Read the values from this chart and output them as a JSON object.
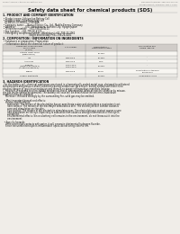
{
  "bg_color": "#f0ede8",
  "header_left": "Product Name: Lithium Ion Battery Cell",
  "header_right_line1": "Document number: SER-049-000-00",
  "header_right_line2": "Establishment / Revision: Dec.7 2010",
  "title": "Safety data sheet for chemical products (SDS)",
  "s1_title": "1. PRODUCT AND COMPANY IDENTIFICATION",
  "s1_lines": [
    " • Product name: Lithium Ion Battery Cell",
    " • Product code: Cylindrical type cell",
    "   DY-B6500, DY-B8500, DY-B500A",
    " • Company name:     Banyu Electric Co., Ltd., Mobile Energy Company",
    " • Address:              2021, Kaminakura, Sumoto City, Hyogo, Japan",
    " • Telephone number:   +81-799-20-4111",
    " • Fax number:   +81-799-26-4123",
    " • Emergency telephone number: (Weekdays) +81-799-20-2062",
    "                                       (Night and holiday) +81-799-26-4101"
  ],
  "s2_title": "2. COMPOSITION / INFORMATION ON INGREDIENTS",
  "s2_line1": " • Substance or preparation: Preparation",
  "s2_line2": "   • Information about the chemical nature of product:",
  "th_component": "Component chemical name",
  "th_cas": "CAS number",
  "th_conc1": "Concentration /",
  "th_conc2": "Concentration range",
  "th_class1": "Classification and",
  "th_class2": "hazard labeling",
  "th_common1": "Several name",
  "th_common2": "[30-40%]",
  "table_rows": [
    [
      "Lithium cobalt oxide",
      "(LiMnCoNiO2)",
      "-",
      "30-40%",
      ""
    ],
    [
      "Iron",
      "",
      "7439-89-6",
      "10-30%",
      "-"
    ],
    [
      "Aluminum",
      "",
      "7429-90-5",
      "2-6%",
      "-"
    ],
    [
      "Graphite",
      "(Metal in graphite-1)",
      "17760-42-5",
      "10-20%",
      "-"
    ],
    [
      "",
      "(Al-Mn in graphite-2)",
      "17760-44-0",
      "",
      ""
    ],
    [
      "Copper",
      "",
      "7440-50-8",
      "5-15%",
      "Sensitization of the skin group No.2"
    ],
    [
      "Organic electrolyte",
      "",
      "-",
      "10-20%",
      "Inflammable liquid"
    ]
  ],
  "s3_title": "3. HAZARDS IDENTIFICATION",
  "s3_lines": [
    "  For the battery cell, chemical substances are stored in a hermetically-sealed metal case, designed to withstand",
    "temperatures and pressure-shock conditions during normal use. As a result, during normal use, there is no",
    "physical danger of ignition or explosion and there is no danger of hazardous materials leakage.",
    "    However, if exposed to a fire, added mechanical shock, decomposed, when an electric shock or by misuse,",
    "the gas inside cannot be operated. The battery cell case will be breached at the extreme, hazardous",
    "materials may be released.",
    "    Moreover, if heated strongly by the surrounding fire, solid gas may be emitted.",
    "",
    "  • Most important hazard and effects:",
    "    Human health effects:",
    "       Inhalation: The release of the electrolyte has an anesthesia action and stimulates a respiratory tract.",
    "       Skin contact: The release of the electrolyte stimulates a skin. The electrolyte skin contact causes a",
    "       sore and stimulation on the skin.",
    "       Eye contact: The release of the electrolyte stimulates eyes. The electrolyte eye contact causes a sore",
    "       and stimulation on the eye. Especially, a substance that causes a strong inflammation of the eye is",
    "       contained.",
    "       Environmental effects: Since a battery cell remains in the environment, do not throw out it into the",
    "       environment.",
    "",
    "  • Specific hazards:",
    "    If the electrolyte contacts with water, it will generate detrimental hydrogen fluoride.",
    "    Since the used electrolyte is inflammable liquid, do not bring close to fire."
  ],
  "line_color": "#aaaaaa",
  "text_color": "#111111",
  "header_color": "#777777",
  "table_header_bg": "#d0ccc8",
  "table_row_bg1": "#f8f6f2",
  "table_row_bg2": "#eceae6"
}
